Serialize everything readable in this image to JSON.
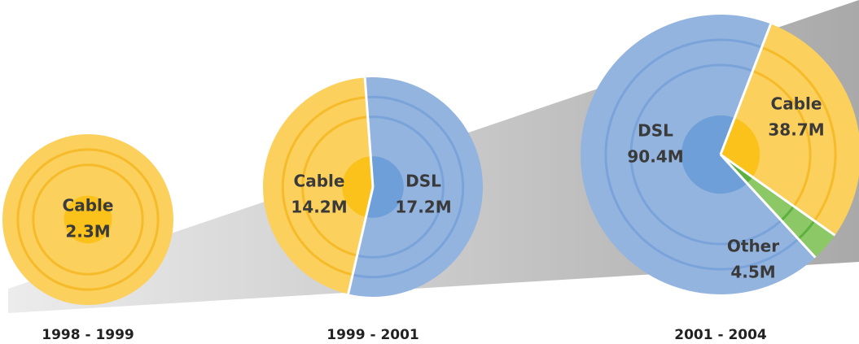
{
  "chart_data": [
    {
      "type": "pie",
      "title": "1998 - 1999",
      "categories": [
        "Cable"
      ],
      "values": [
        2.3
      ],
      "value_labels": [
        "2.3M"
      ],
      "colors": [
        "#fcd05c"
      ]
    },
    {
      "type": "pie",
      "title": "1999 - 2001",
      "categories": [
        "Cable",
        "DSL"
      ],
      "values": [
        14.2,
        17.2
      ],
      "value_labels": [
        "14.2M",
        "17.2M"
      ],
      "colors": [
        "#fcd05c",
        "#94b4e0"
      ]
    },
    {
      "type": "pie",
      "title": "2001 - 2004",
      "categories": [
        "DSL",
        "Cable",
        "Other"
      ],
      "values": [
        90.4,
        38.7,
        4.5
      ],
      "value_labels": [
        "90.4M",
        "38.7M",
        "4.5M"
      ],
      "colors": [
        "#94b4e0",
        "#fcd05c",
        "#8cc866"
      ]
    }
  ]
}
